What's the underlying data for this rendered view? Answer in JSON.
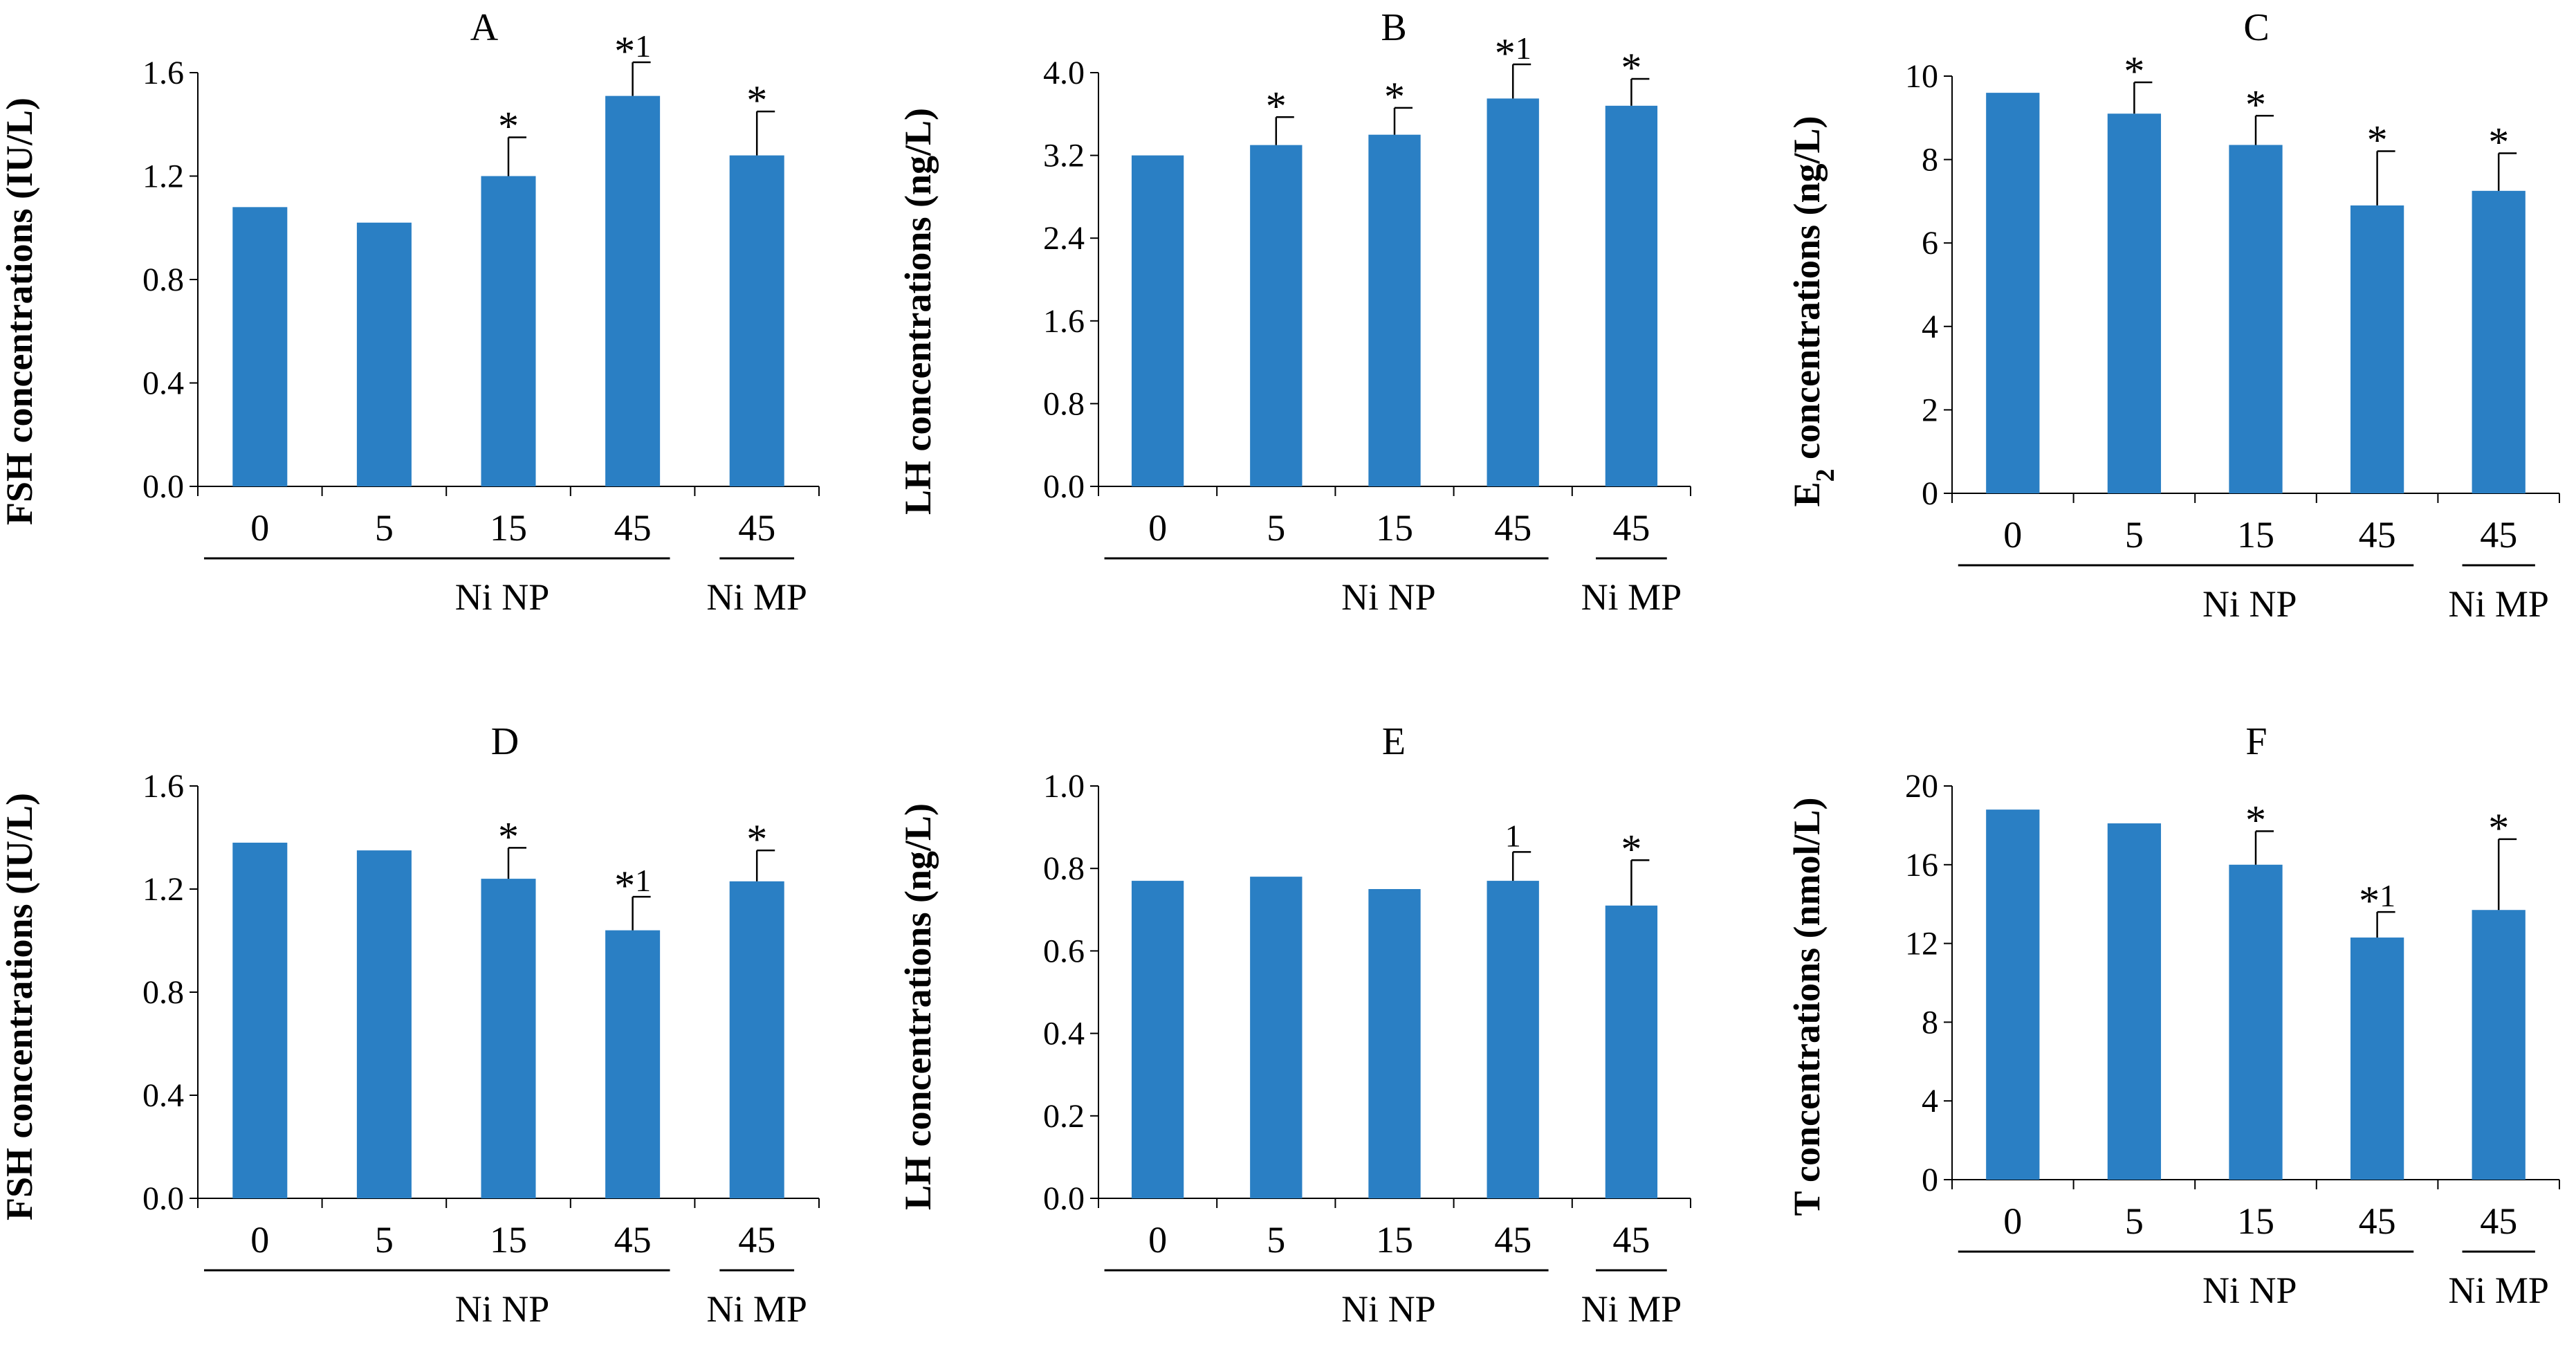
{
  "figure": {
    "bar_color": "#2A7FC4",
    "axis_color": "#000000"
  },
  "chart_data": [
    {
      "type": "bar",
      "panel": "A",
      "title": "A",
      "ylabel": "FSH concentrations (IU/L)",
      "categories": [
        "0",
        "5",
        "15",
        "45",
        "45"
      ],
      "groups": [
        {
          "label": "Ni NP",
          "categories": [
            0,
            1,
            2,
            3
          ]
        },
        {
          "label": "Ni MP",
          "categories": [
            4
          ]
        }
      ],
      "values": [
        1.08,
        1.02,
        1.2,
        1.51,
        1.28
      ],
      "errors": [
        0,
        0,
        0.15,
        0.13,
        0.17
      ],
      "annotations": [
        "",
        "",
        "*",
        "*1",
        "*"
      ],
      "ylim": [
        0,
        1.6
      ],
      "yticks": [
        "0.0",
        "0.4",
        "0.8",
        "1.2",
        "1.6"
      ],
      "grid": false
    },
    {
      "type": "bar",
      "panel": "B",
      "title": "B",
      "ylabel": "LH concentrations (ng/L)",
      "categories": [
        "0",
        "5",
        "15",
        "45",
        "45"
      ],
      "groups": [
        {
          "label": "Ni NP",
          "categories": [
            0,
            1,
            2,
            3
          ]
        },
        {
          "label": "Ni MP",
          "categories": [
            4
          ]
        }
      ],
      "values": [
        3.2,
        3.3,
        3.4,
        3.75,
        3.68
      ],
      "errors": [
        0,
        0.27,
        0.26,
        0.33,
        0.26
      ],
      "annotations": [
        "",
        "*",
        "*",
        "*1",
        "*"
      ],
      "ylim": [
        0,
        4.0
      ],
      "yticks": [
        "0.0",
        "0.8",
        "1.6",
        "2.4",
        "3.2",
        "4.0"
      ],
      "grid": false
    },
    {
      "type": "bar",
      "panel": "C",
      "title": "C",
      "ylabel_main": "E",
      "ylabel_sub": "2",
      "ylabel_rest": " concentrations (ng/L)",
      "categories": [
        "0",
        "5",
        "15",
        "45",
        "45"
      ],
      "groups": [
        {
          "label": "Ni NP",
          "categories": [
            0,
            1,
            2,
            3
          ]
        },
        {
          "label": "Ni MP",
          "categories": [
            4
          ]
        }
      ],
      "values": [
        9.6,
        9.1,
        8.35,
        6.9,
        7.25
      ],
      "errors": [
        0,
        0.75,
        0.7,
        1.3,
        0.9
      ],
      "annotations": [
        "",
        "*",
        "*",
        "*",
        "*"
      ],
      "ylim": [
        0,
        10
      ],
      "yticks": [
        "0",
        "2",
        "4",
        "6",
        "8",
        "10"
      ],
      "grid": false
    },
    {
      "type": "bar",
      "panel": "D",
      "title": "D",
      "ylabel": "FSH concentrations (IU/L)",
      "categories": [
        "0",
        "5",
        "15",
        "45",
        "45"
      ],
      "groups": [
        {
          "label": "Ni NP",
          "categories": [
            0,
            1,
            2,
            3
          ]
        },
        {
          "label": "Ni MP",
          "categories": [
            4
          ]
        }
      ],
      "values": [
        1.38,
        1.35,
        1.24,
        1.04,
        1.23
      ],
      "errors": [
        0,
        0,
        0.12,
        0.13,
        0.12
      ],
      "annotations": [
        "",
        "",
        "*",
        "*1",
        "*"
      ],
      "ylim": [
        0,
        1.6
      ],
      "yticks": [
        "0.0",
        "0.4",
        "0.8",
        "1.2",
        "1.6"
      ],
      "grid": false
    },
    {
      "type": "bar",
      "panel": "E",
      "title": "E",
      "ylabel": "LH concentrations (ng/L)",
      "categories": [
        "0",
        "5",
        "15",
        "45",
        "45"
      ],
      "groups": [
        {
          "label": "Ni NP",
          "categories": [
            0,
            1,
            2,
            3
          ]
        },
        {
          "label": "Ni MP",
          "categories": [
            4
          ]
        }
      ],
      "values": [
        0.77,
        0.78,
        0.75,
        0.77,
        0.71
      ],
      "errors": [
        0,
        0,
        0,
        0.07,
        0.11
      ],
      "annotations": [
        "",
        "",
        "",
        "1",
        "*"
      ],
      "ylim": [
        0,
        1.0
      ],
      "yticks": [
        "0.0",
        "0.2",
        "0.4",
        "0.6",
        "0.8",
        "1.0"
      ],
      "grid": false
    },
    {
      "type": "bar",
      "panel": "F",
      "title": "F",
      "ylabel": "T concentrations (nmol/L)",
      "categories": [
        "0",
        "5",
        "15",
        "45",
        "45"
      ],
      "groups": [
        {
          "label": "Ni NP",
          "categories": [
            0,
            1,
            2,
            3
          ]
        },
        {
          "label": "Ni MP",
          "categories": [
            4
          ]
        }
      ],
      "values": [
        18.8,
        18.1,
        16.0,
        12.3,
        13.7
      ],
      "errors": [
        0,
        0,
        1.7,
        1.3,
        3.6
      ],
      "annotations": [
        "",
        "",
        "*",
        "*1",
        "*"
      ],
      "ylim": [
        0,
        20
      ],
      "yticks": [
        "0",
        "4",
        "8",
        "12",
        "16",
        "20"
      ],
      "grid": false
    }
  ]
}
